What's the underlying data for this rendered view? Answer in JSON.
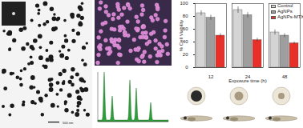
{
  "chart_data": {
    "type": "bar",
    "categories": [
      "12",
      "24",
      "48"
    ],
    "series": [
      {
        "name": "Control",
        "color": "#d4d4d4",
        "values": [
          85,
          90,
          55
        ],
        "error": [
          4,
          5,
          4
        ]
      },
      {
        "name": "AgNPs",
        "color": "#9e9e9e",
        "values": [
          78,
          82,
          50
        ],
        "error": [
          4,
          4,
          3
        ]
      },
      {
        "name": "AgNPs-MTX",
        "color": "#e8302a",
        "values": [
          50,
          43,
          38
        ],
        "error": [
          3,
          3,
          2
        ]
      }
    ],
    "x_label": "Exposure time (h)",
    "y_label": "% Cell Viability",
    "ylim": [
      0,
      100
    ],
    "yticks": [
      0,
      20,
      40,
      60,
      80,
      100
    ],
    "legend": "top-right",
    "grid": false
  },
  "tem_image": {
    "scale_bar": "500 nm"
  }
}
